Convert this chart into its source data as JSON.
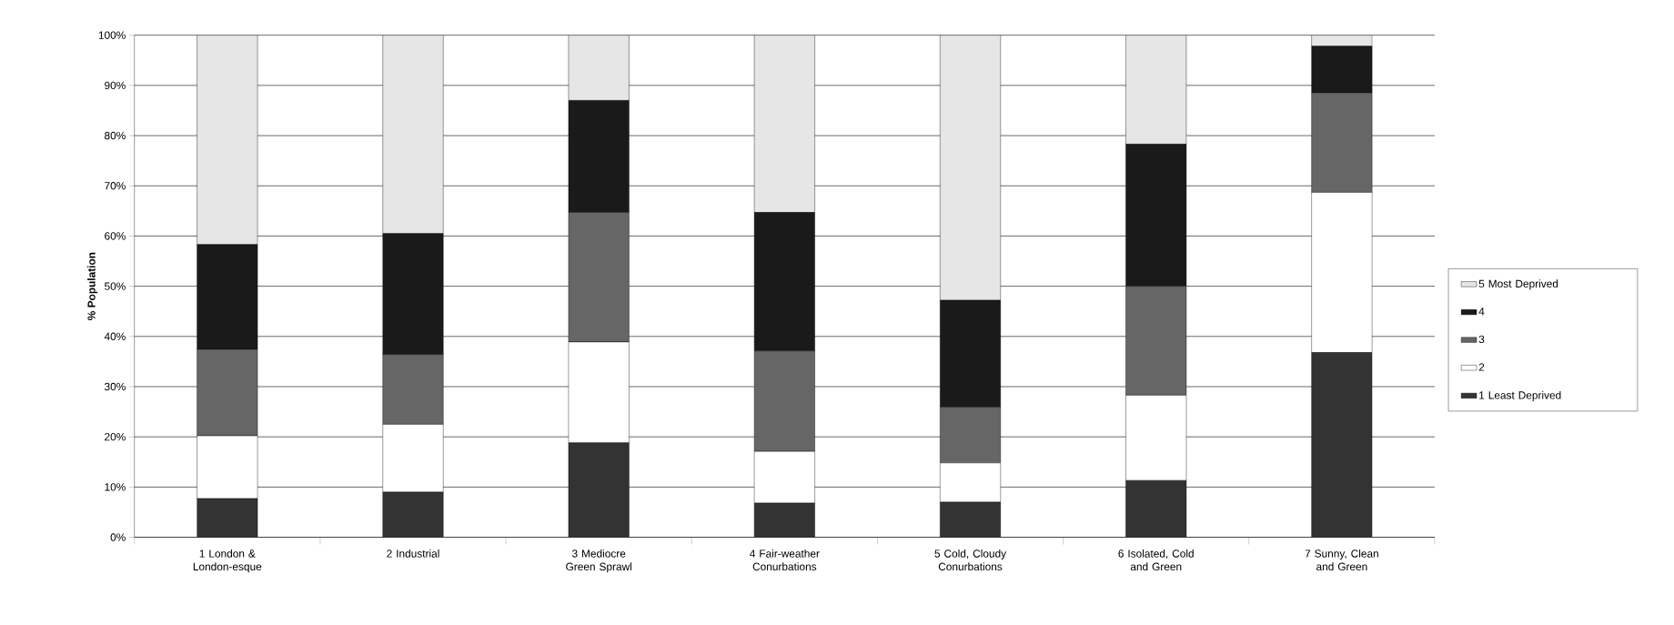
{
  "chart_data": {
    "type": "bar",
    "stacked": true,
    "ylabel": "% Population",
    "categories": [
      "1 London & London-esque",
      "2 Industrial",
      "3 Mediocre Green Sprawl",
      "4 Fair-weather Conurbations",
      "5 Cold, Cloudy Conurbations",
      "6 Isolated, Cold and Green",
      "7 Sunny, Clean and Green"
    ],
    "series": [
      {
        "name": "1 Least Deprived",
        "color": "#333333",
        "values": [
          7.7,
          9.0,
          18.8,
          6.8,
          7.0,
          11.3,
          36.8
        ]
      },
      {
        "name": "2",
        "color": "#ffffff",
        "values": [
          12.5,
          13.5,
          20.1,
          10.3,
          7.8,
          17.0,
          31.9
        ]
      },
      {
        "name": "3",
        "color": "#666666",
        "values": [
          17.2,
          13.9,
          25.8,
          20.0,
          11.1,
          21.7,
          19.8
        ]
      },
      {
        "name": "4",
        "color": "#1a1a1a",
        "values": [
          20.9,
          24.1,
          22.3,
          27.6,
          21.3,
          28.3,
          9.3
        ]
      },
      {
        "name": "5 Most Deprived",
        "color": "#e6e6e6",
        "values": [
          41.7,
          39.5,
          13.0,
          35.3,
          52.8,
          21.7,
          2.2
        ]
      }
    ],
    "ylim": [
      0,
      100
    ],
    "yticks": [
      {
        "value": 0,
        "label": "0%"
      },
      {
        "value": 10,
        "label": "10%"
      },
      {
        "value": 20,
        "label": "20%"
      },
      {
        "value": 30,
        "label": "30%"
      },
      {
        "value": 40,
        "label": "40%"
      },
      {
        "value": 50,
        "label": "50%"
      },
      {
        "value": 60,
        "label": "60%"
      },
      {
        "value": 70,
        "label": "70%"
      },
      {
        "value": 80,
        "label": "80%"
      },
      {
        "value": 90,
        "label": "90%"
      },
      {
        "value": 100,
        "label": "100%"
      }
    ],
    "grid": "y",
    "legend": "right"
  }
}
